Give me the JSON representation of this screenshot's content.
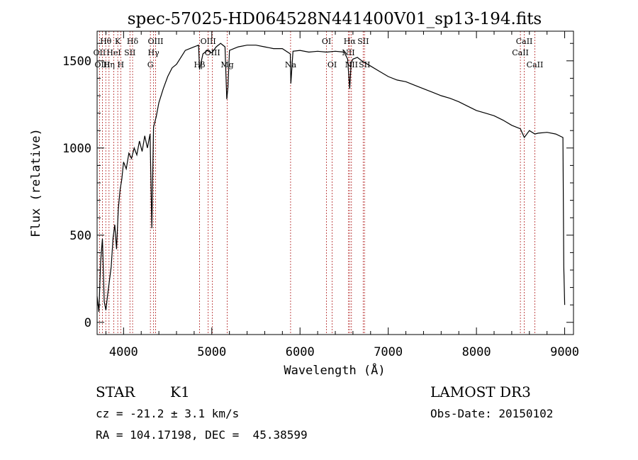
{
  "chart_data": {
    "type": "line",
    "title": "spec-57025-HD064528N441400V01_sp13-194.fits",
    "xlabel": "Wavelength (Å)",
    "ylabel": "Flux (relative)",
    "xlim": [
      3700,
      9100
    ],
    "ylim": [
      -70,
      1670
    ],
    "x_ticks": [
      4000,
      5000,
      6000,
      7000,
      8000,
      9000
    ],
    "y_ticks": [
      0,
      500,
      1000,
      1500
    ],
    "series": [
      {
        "name": "spectrum",
        "x": [
          3700,
          3720,
          3740,
          3760,
          3780,
          3800,
          3820,
          3840,
          3860,
          3880,
          3900,
          3920,
          3940,
          3960,
          3980,
          4000,
          4030,
          4060,
          4090,
          4120,
          4150,
          4180,
          4210,
          4240,
          4270,
          4300,
          4320,
          4340,
          4370,
          4400,
          4450,
          4500,
          4550,
          4600,
          4650,
          4700,
          4750,
          4800,
          4850,
          4861,
          4900,
          4950,
          5000,
          5050,
          5100,
          5150,
          5170,
          5183,
          5200,
          5250,
          5300,
          5400,
          5500,
          5600,
          5700,
          5800,
          5890,
          5896,
          5920,
          6000,
          6100,
          6200,
          6300,
          6400,
          6500,
          6540,
          6563,
          6580,
          6600,
          6650,
          6700,
          6800,
          6900,
          7000,
          7100,
          7200,
          7300,
          7400,
          7500,
          7600,
          7700,
          7800,
          7900,
          8000,
          8100,
          8200,
          8300,
          8400,
          8498,
          8542,
          8600,
          8662,
          8700,
          8800,
          8900,
          8980,
          8990,
          9000
        ],
        "values": [
          150,
          60,
          350,
          480,
          120,
          70,
          160,
          240,
          320,
          480,
          560,
          420,
          650,
          760,
          820,
          920,
          880,
          970,
          940,
          1000,
          960,
          1040,
          980,
          1070,
          1000,
          1080,
          540,
          1120,
          1180,
          1260,
          1340,
          1410,
          1460,
          1480,
          1520,
          1560,
          1570,
          1580,
          1590,
          1450,
          1540,
          1560,
          1545,
          1580,
          1600,
          1580,
          1280,
          1350,
          1560,
          1570,
          1580,
          1590,
          1590,
          1580,
          1570,
          1570,
          1540,
          1370,
          1555,
          1560,
          1550,
          1555,
          1550,
          1555,
          1550,
          1510,
          1340,
          1490,
          1510,
          1520,
          1500,
          1470,
          1440,
          1410,
          1390,
          1380,
          1360,
          1340,
          1320,
          1300,
          1285,
          1265,
          1240,
          1215,
          1200,
          1185,
          1160,
          1130,
          1110,
          1060,
          1100,
          1080,
          1085,
          1090,
          1080,
          1060,
          320,
          100
        ]
      }
    ],
    "lines": [
      {
        "label": "Hθ",
        "x": 3798,
        "row": 1
      },
      {
        "label": "OII",
        "x": 3727,
        "row": 2
      },
      {
        "label": "OIII",
        "x": 3760,
        "row": 3
      },
      {
        "label": "K",
        "x": 3934,
        "row": 1
      },
      {
        "label": "HeI",
        "x": 3889,
        "row": 2
      },
      {
        "label": "Hη",
        "x": 3835,
        "row": 3
      },
      {
        "label": "Hδ",
        "x": 4102,
        "row": 1
      },
      {
        "label": "SII",
        "x": 4072,
        "row": 2
      },
      {
        "label": "H",
        "x": 3968,
        "row": 3
      },
      {
        "label": "OIII",
        "x": 4363,
        "row": 1
      },
      {
        "label": "Hγ",
        "x": 4340,
        "row": 2
      },
      {
        "label": "G",
        "x": 4304,
        "row": 3
      },
      {
        "label": "Hβ",
        "x": 4861,
        "row": 3
      },
      {
        "label": "OIII",
        "x": 4959,
        "row": 1
      },
      {
        "label": "OIII",
        "x": 5007,
        "row": 2
      },
      {
        "label": "Mg",
        "x": 5175,
        "row": 3
      },
      {
        "label": "Na",
        "x": 5893,
        "row": 3
      },
      {
        "label": "OI",
        "x": 6300,
        "row": 1
      },
      {
        "label": "OI",
        "x": 6364,
        "row": 3
      },
      {
        "label": "Hα",
        "x": 6563,
        "row": 1
      },
      {
        "label": "SII",
        "x": 6716,
        "row": 1
      },
      {
        "label": "NII",
        "x": 6548,
        "row": 2
      },
      {
        "label": "NII",
        "x": 6583,
        "row": 3
      },
      {
        "label": "SII",
        "x": 6731,
        "row": 3
      },
      {
        "label": "CaII",
        "x": 8542,
        "row": 1
      },
      {
        "label": "CaII",
        "x": 8498,
        "row": 2
      },
      {
        "label": "CaII",
        "x": 8662,
        "row": 3
      }
    ]
  },
  "info": {
    "class": "STAR",
    "subclass": "K1",
    "survey": "LAMOST DR3",
    "cz": "cz = -21.2 ± 3.1 km/s",
    "obs_date": "Obs-Date: 20150102",
    "radec": "RA = 104.17198, DEC =  45.38599"
  },
  "colors": {
    "line": "#000000",
    "marker": "#b22222",
    "background": "#ffffff"
  }
}
